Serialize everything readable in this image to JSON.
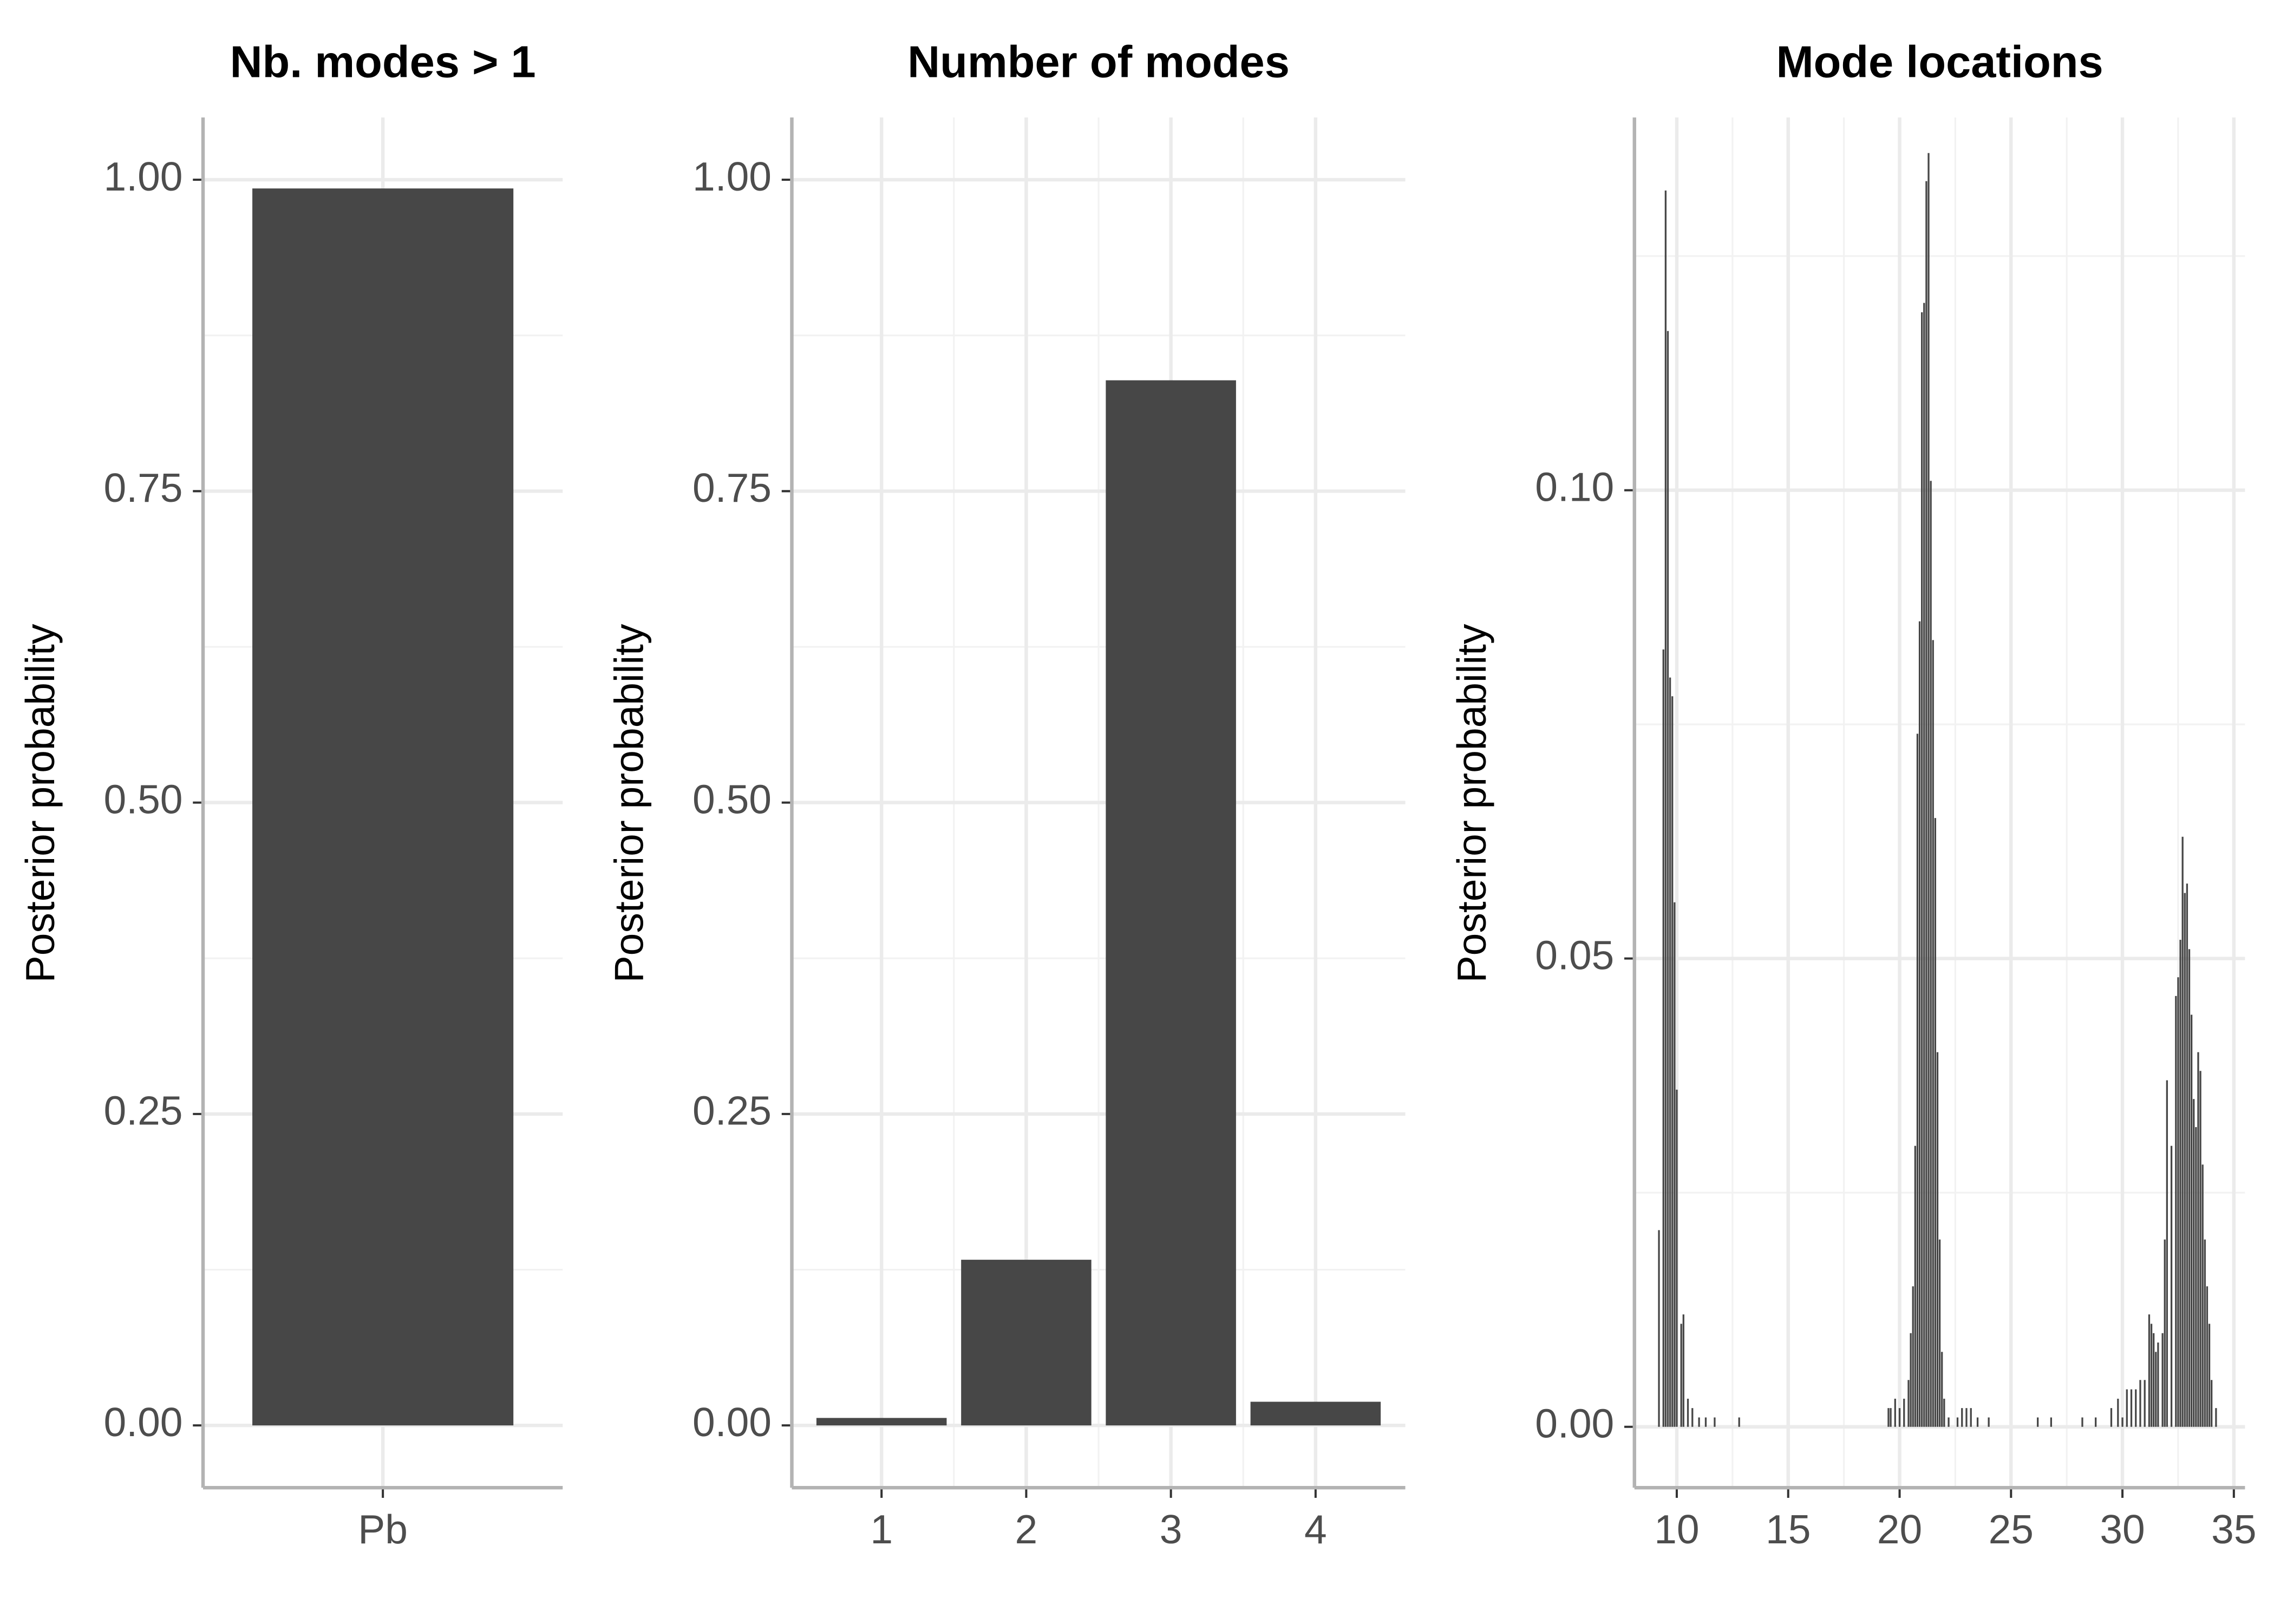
{
  "chart_data": [
    {
      "type": "bar",
      "title": "Nb. modes > 1",
      "y_label": "Posterior probability",
      "categories": [
        "Pb"
      ],
      "values": [
        0.993
      ],
      "color": "#474747",
      "ylim": [
        -0.05,
        1.05
      ],
      "yticks": [
        {
          "value": 0,
          "label": "0.00"
        },
        {
          "value": 0.25,
          "label": "0.25"
        },
        {
          "value": 0.5,
          "label": "0.50"
        },
        {
          "value": 0.75,
          "label": "0.75"
        },
        {
          "value": 1,
          "label": "1.00"
        }
      ],
      "grid": true
    },
    {
      "type": "bar",
      "title": "Number of modes",
      "y_label": "Posterior probability",
      "categories": [
        "1",
        "2",
        "3",
        "4"
      ],
      "values": [
        0.006,
        0.133,
        0.839,
        0.019
      ],
      "color": "#474747",
      "ylim": [
        -0.05,
        1.05
      ],
      "yticks": [
        {
          "value": 0,
          "label": "0.00"
        },
        {
          "value": 0.25,
          "label": "0.25"
        },
        {
          "value": 0.5,
          "label": "0.50"
        },
        {
          "value": 0.75,
          "label": "0.75"
        },
        {
          "value": 1,
          "label": "1.00"
        }
      ],
      "grid": true
    },
    {
      "type": "bar",
      "title": "Mode locations",
      "y_label": "Posterior probability",
      "x": [
        9.2,
        9.4,
        9.5,
        9.6,
        9.7,
        9.8,
        9.9,
        10.0,
        10.2,
        10.3,
        10.5,
        10.7,
        11.0,
        11.3,
        11.7,
        12.8,
        19.5,
        19.6,
        19.8,
        20.0,
        20.2,
        20.4,
        20.5,
        20.6,
        20.7,
        20.8,
        20.9,
        21.0,
        21.1,
        21.2,
        21.3,
        21.4,
        21.5,
        21.6,
        21.7,
        21.8,
        21.9,
        22.0,
        22.2,
        22.6,
        22.8,
        23.0,
        23.2,
        23.5,
        24.0,
        26.2,
        26.8,
        28.2,
        28.8,
        29.5,
        29.8,
        30.0,
        30.2,
        30.4,
        30.6,
        30.8,
        31.0,
        31.2,
        31.3,
        31.4,
        31.5,
        31.6,
        31.8,
        31.9,
        32.0,
        32.2,
        32.4,
        32.5,
        32.6,
        32.7,
        32.8,
        32.9,
        33.0,
        33.1,
        33.2,
        33.3,
        33.4,
        33.5,
        33.6,
        33.7,
        33.8,
        33.9,
        34.0,
        34.2
      ],
      "values": [
        0.021,
        0.083,
        0.132,
        0.117,
        0.08,
        0.078,
        0.056,
        0.036,
        0.011,
        0.012,
        0.003,
        0.002,
        0.001,
        0.001,
        0.001,
        0.001,
        0.002,
        0.002,
        0.003,
        0.002,
        0.003,
        0.005,
        0.01,
        0.015,
        0.03,
        0.074,
        0.086,
        0.119,
        0.12,
        0.133,
        0.136,
        0.101,
        0.084,
        0.065,
        0.04,
        0.02,
        0.008,
        0.003,
        0.001,
        0.001,
        0.002,
        0.002,
        0.002,
        0.001,
        0.001,
        0.001,
        0.001,
        0.001,
        0.001,
        0.002,
        0.003,
        0.001,
        0.004,
        0.004,
        0.004,
        0.005,
        0.005,
        0.012,
        0.011,
        0.01,
        0.008,
        0.009,
        0.01,
        0.02,
        0.037,
        0.03,
        0.046,
        0.048,
        0.052,
        0.063,
        0.057,
        0.058,
        0.051,
        0.044,
        0.035,
        0.032,
        0.04,
        0.038,
        0.028,
        0.02,
        0.015,
        0.011,
        0.005,
        0.002
      ],
      "color": "#474747",
      "xlim": [
        8.1,
        35.5
      ],
      "xticks": [
        10,
        15,
        20,
        25,
        30,
        35
      ],
      "ylim": [
        -0.0065,
        0.1398
      ],
      "yticks": [
        {
          "value": 0,
          "label": "0.00"
        },
        {
          "value": 0.05,
          "label": "0.05"
        },
        {
          "value": 0.1,
          "label": "0.10"
        }
      ],
      "grid": true
    }
  ]
}
